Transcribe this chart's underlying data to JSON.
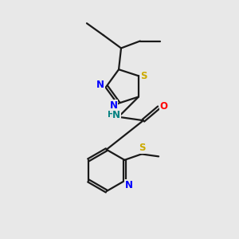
{
  "bg_color": "#e8e8e8",
  "bond_color": "#1a1a1a",
  "N_color": "#0000ff",
  "S_color": "#ccaa00",
  "O_color": "#ff0000",
  "NH_color": "#008080",
  "line_width": 1.6,
  "figsize": [
    3.0,
    3.0
  ],
  "dpi": 100,
  "xlim": [
    0,
    10
  ],
  "ylim": [
    0,
    10
  ]
}
